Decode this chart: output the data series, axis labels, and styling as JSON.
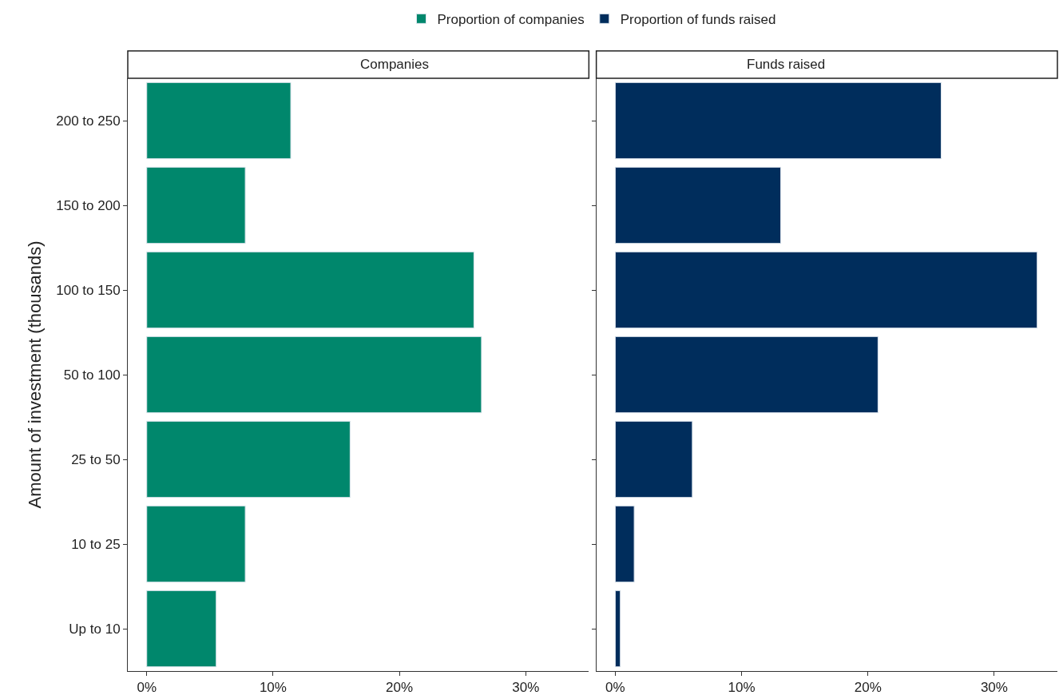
{
  "chart_data": [
    {
      "type": "bar",
      "orientation": "horizontal",
      "title": "Companies",
      "ylabel": "Amount of investment (thousands)",
      "categories": [
        "200 to 250",
        "150 to 200",
        "100 to 150",
        "50 to 100",
        "25 to 50",
        "10 to 25",
        "Up to 10"
      ],
      "series": [
        {
          "name": "Proportion of companies",
          "color": "#00876c",
          "values": [
            11.4,
            7.8,
            25.9,
            26.5,
            16.1,
            7.8,
            5.5
          ]
        }
      ],
      "xlim": [
        -1.5,
        35
      ],
      "xticks": [
        {
          "value": 0,
          "label": "0%"
        },
        {
          "value": 10,
          "label": "10%"
        },
        {
          "value": 20,
          "label": "20%"
        },
        {
          "value": 30,
          "label": "30%"
        }
      ],
      "legend": "top"
    },
    {
      "type": "bar",
      "orientation": "horizontal",
      "title": "Funds raised",
      "categories": [
        "200 to 250",
        "150 to 200",
        "100 to 150",
        "50 to 100",
        "25 to 50",
        "10 to 25",
        "Up to 10"
      ],
      "series": [
        {
          "name": "Proportion of funds raised",
          "color": "#002d5c",
          "values": [
            25.8,
            13.1,
            33.4,
            20.8,
            6.1,
            1.5,
            0.4
          ]
        }
      ],
      "xlim": [
        -1.5,
        35
      ],
      "xticks": [
        {
          "value": 0,
          "label": "0%"
        },
        {
          "value": 10,
          "label": "10%"
        },
        {
          "value": 20,
          "label": "20%"
        },
        {
          "value": 30,
          "label": "30%"
        }
      ],
      "legend": "top",
      "tick_labels": "x"
    }
  ]
}
